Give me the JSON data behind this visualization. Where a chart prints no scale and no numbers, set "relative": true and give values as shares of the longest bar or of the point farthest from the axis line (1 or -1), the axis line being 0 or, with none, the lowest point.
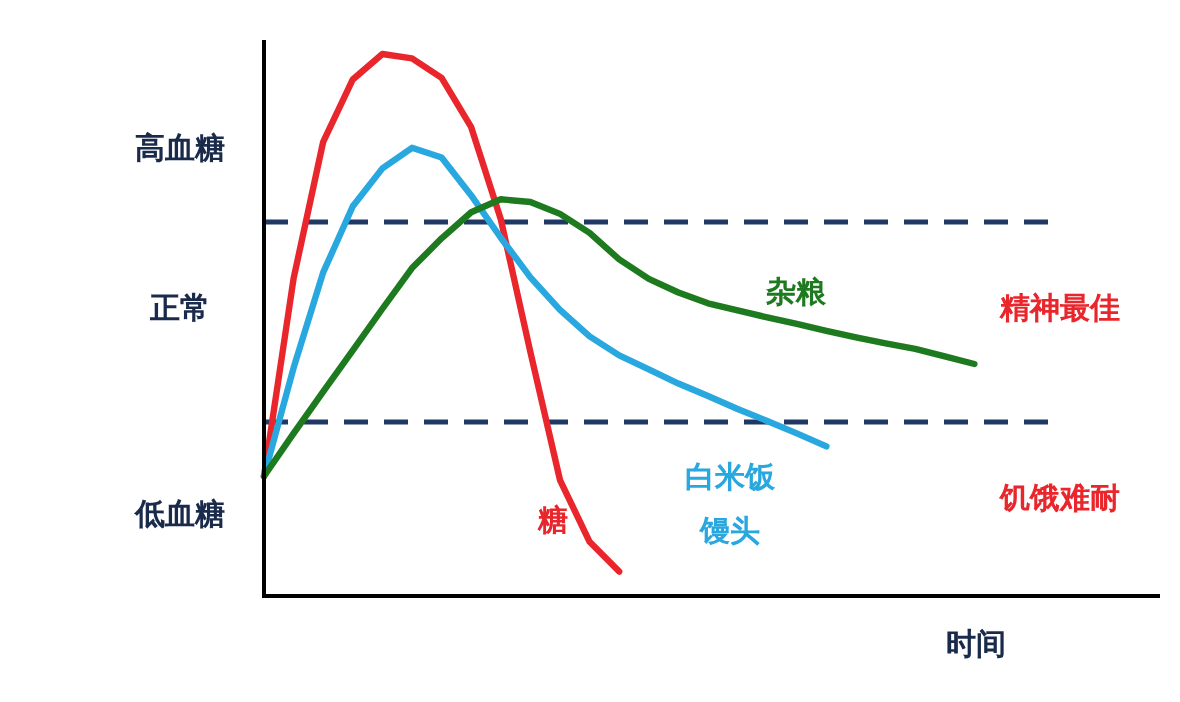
{
  "chart_data": {
    "type": "line",
    "relative": true,
    "xlabel": "时间",
    "categories": [
      null,
      null,
      null,
      null,
      null,
      null,
      null,
      null,
      null,
      null,
      null,
      null,
      null,
      null,
      null,
      null,
      null,
      null,
      null,
      null,
      null,
      null,
      null,
      null,
      null
    ],
    "ref_lines": [
      {
        "axis": "y",
        "value": 0.69,
        "color": "#1f3864",
        "line_style": "dashed"
      },
      {
        "axis": "y",
        "value": 0.321,
        "color": "#1f3864",
        "line_style": "dashed"
      }
    ],
    "annotations": [
      "高血糖",
      "正常",
      "低血糖",
      "精神最佳",
      "饥饿难耐"
    ],
    "line_style": "solid",
    "series": [
      {
        "name": "糖",
        "color": "#e8262b",
        "values": [
          0.221,
          0.586,
          0.838,
          0.953,
          1,
          0.992,
          0.956,
          0.865,
          0.695,
          0.45,
          0.214,
          0.1,
          0.045,
          null,
          null,
          null,
          null,
          null,
          null,
          null,
          null,
          null,
          null,
          null,
          null
        ]
      },
      {
        "name": "白米饭馒头",
        "color": "#29a8e0",
        "values": [
          0.221,
          0.421,
          0.597,
          0.719,
          0.789,
          0.827,
          0.809,
          0.739,
          0.661,
          0.588,
          0.528,
          0.479,
          0.444,
          0.418,
          0.392,
          0.369,
          0.345,
          0.323,
          0.3,
          0.276,
          null,
          null,
          null,
          null,
          null
        ]
      },
      {
        "name": "杂粮",
        "color": "#1e7a1e",
        "values": [
          0.221,
          0.3,
          0.377,
          0.453,
          0.53,
          0.605,
          0.66,
          0.708,
          0.732,
          0.727,
          0.705,
          0.67,
          0.621,
          0.585,
          0.56,
          0.54,
          0.527,
          0.514,
          0.502,
          0.489,
          0.477,
          0.466,
          0.456,
          0.442,
          0.428
        ]
      }
    ]
  }
}
